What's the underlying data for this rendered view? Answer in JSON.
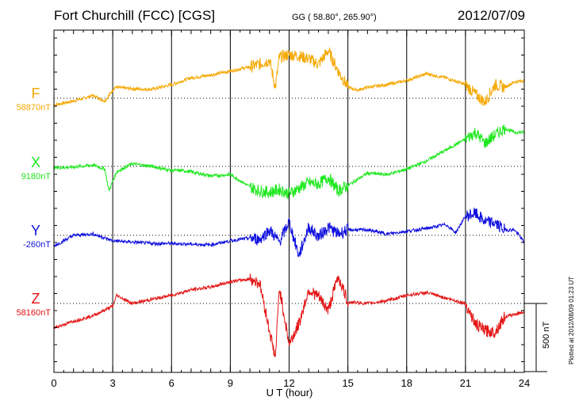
{
  "header": {
    "title": "Fort Churchill (FCC)  [CGS]",
    "coords": "GG ( 58.80°, 265.90°)",
    "date": "2012/07/09"
  },
  "plotted_note": "Plotted at 2012/08/09 01:23 UT",
  "chart_data": {
    "type": "line",
    "title": "Fort Churchill (FCC)  [CGS]",
    "xlabel": "U T (hour)",
    "xlim": [
      0,
      24
    ],
    "xticks": [
      "0",
      "3",
      "6",
      "9",
      "12",
      "15",
      "18",
      "21",
      "24"
    ],
    "scale_bar": "500 nT",
    "grid": "dotted",
    "series": [
      {
        "name": "F",
        "baseline": "58870nT",
        "color": "#f5a800",
        "x": [
          0,
          1,
          2,
          2.6,
          2.9,
          3.1,
          4,
          5,
          6,
          7,
          8,
          9,
          10,
          10.5,
          11,
          11.3,
          11.5,
          12,
          12.5,
          13,
          13.5,
          14,
          14.5,
          15,
          15.5,
          16,
          17,
          18,
          19,
          20,
          21,
          21.5,
          22,
          22.5,
          23,
          23.5,
          24
        ],
        "y": [
          -50,
          -20,
          20,
          -20,
          40,
          80,
          70,
          65,
          100,
          150,
          170,
          200,
          230,
          250,
          280,
          80,
          300,
          320,
          310,
          290,
          250,
          350,
          200,
          80,
          60,
          80,
          100,
          130,
          180,
          150,
          100,
          30,
          -30,
          100,
          80,
          120,
          130
        ]
      },
      {
        "name": "X",
        "baseline": "9180nT",
        "color": "#1ee81e",
        "x": [
          0,
          1,
          2,
          2.6,
          2.8,
          3.2,
          4,
          5,
          6,
          6.5,
          7,
          8,
          9,
          10,
          10.5,
          11,
          11.5,
          12,
          12.5,
          13,
          13.5,
          14,
          14.5,
          15,
          16,
          17,
          18,
          19,
          20,
          21,
          21.5,
          22,
          22.5,
          23,
          23.5,
          24
        ],
        "y": [
          -10,
          -5,
          10,
          -20,
          -180,
          -40,
          20,
          0,
          -30,
          -30,
          -40,
          -70,
          -60,
          -150,
          -180,
          -190,
          -170,
          -200,
          -160,
          -120,
          -130,
          -80,
          -180,
          -140,
          -50,
          -60,
          -20,
          40,
          120,
          200,
          250,
          170,
          230,
          280,
          250,
          250
        ]
      },
      {
        "name": "Y",
        "baseline": "-260nT",
        "color": "#1010e0",
        "x": [
          0,
          1,
          2,
          3,
          4,
          5,
          6,
          7,
          8,
          9,
          10,
          10.5,
          11,
          11.5,
          12,
          12.5,
          13,
          13.5,
          14,
          14.5,
          15,
          16,
          17,
          18,
          19,
          20,
          20.5,
          21,
          21.5,
          22,
          22.5,
          23,
          23.5,
          24
        ],
        "y": [
          -80,
          0,
          10,
          -40,
          -50,
          -60,
          -60,
          -65,
          -70,
          -40,
          -20,
          -30,
          40,
          -50,
          100,
          -150,
          60,
          -10,
          60,
          10,
          40,
          40,
          10,
          30,
          50,
          80,
          20,
          140,
          160,
          100,
          90,
          40,
          40,
          -50
        ]
      },
      {
        "name": "Z",
        "baseline": "58160nT",
        "color": "#e41414",
        "x": [
          0,
          1,
          2,
          3,
          3.2,
          4,
          5,
          6,
          7,
          8,
          9,
          10,
          10.5,
          11,
          11.3,
          11.5,
          12,
          12.5,
          13,
          13.5,
          14,
          14.5,
          15,
          16,
          17,
          18,
          19,
          20,
          21,
          21.5,
          22,
          22.5,
          23,
          23.5,
          24
        ],
        "y": [
          -180,
          -130,
          -90,
          -20,
          60,
          0,
          30,
          60,
          100,
          120,
          160,
          180,
          150,
          -200,
          -400,
          120,
          -300,
          -150,
          100,
          50,
          -50,
          200,
          10,
          0,
          20,
          60,
          80,
          40,
          0,
          -150,
          -200,
          -210,
          -100,
          -80,
          -60
        ]
      }
    ]
  }
}
